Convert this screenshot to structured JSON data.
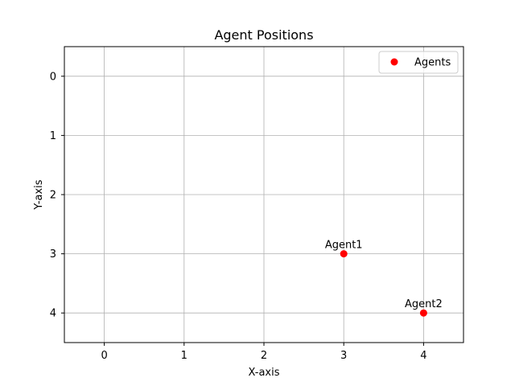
{
  "chart_data": {
    "type": "scatter",
    "title": "Agent Positions",
    "xlabel": "X-axis",
    "ylabel": "Y-axis",
    "xlim": [
      -0.5,
      4.5
    ],
    "ylim": [
      -0.5,
      4.5
    ],
    "y_inverted": true,
    "xticks": [
      0,
      1,
      2,
      3,
      4
    ],
    "yticks": [
      0,
      1,
      2,
      3,
      4
    ],
    "grid": true,
    "legend": {
      "position": "top-right",
      "entries": [
        "Agents"
      ]
    },
    "series": [
      {
        "name": "Agents",
        "color": "#ff0000",
        "points": [
          {
            "label": "Agent1",
            "x": 3,
            "y": 3
          },
          {
            "label": "Agent2",
            "x": 4,
            "y": 4
          }
        ]
      }
    ]
  }
}
